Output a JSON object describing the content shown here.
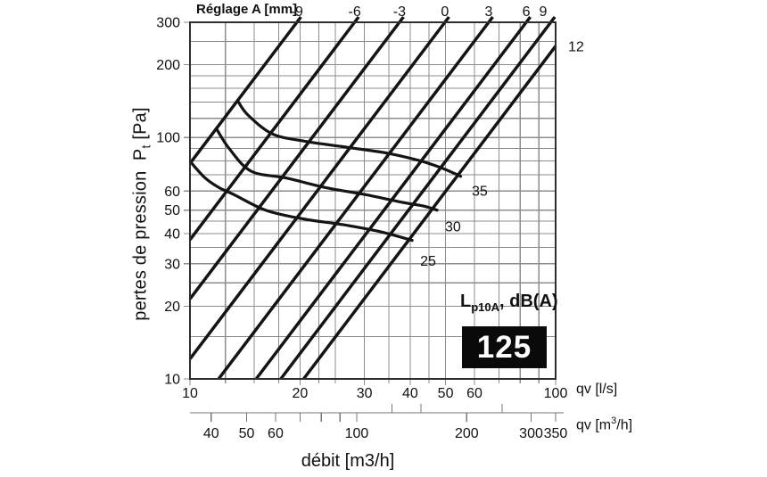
{
  "labels": {
    "reglage_header": "Réglage A [mm]",
    "y_title": {
      "text": "pertes de pression",
      "sym": "P",
      "sub": "t",
      "unit": "[Pa]"
    },
    "x_title": "débit [m3/h]",
    "x_unit": "qv [l/s]",
    "x2_unit": {
      "pre": "qv [m",
      "sup": "3",
      "post": "/h]"
    },
    "noise_label": {
      "sym": "L",
      "sub": "p10A",
      "rest": ", dB(A)"
    },
    "badge": "125"
  },
  "colors": {
    "curve": "#141414",
    "grid": "#8c8c8c",
    "border": "#2e2e2e",
    "text": "#111111",
    "badge_bg": "#0a0a0a",
    "badge_text": "#ffffff"
  },
  "chart_data": {
    "type": "line",
    "log_x": true,
    "log_y": true,
    "x_axis": {
      "unit": "qv [l/s]",
      "range": [
        10,
        100
      ],
      "major_ticks": [
        10,
        20,
        30,
        40,
        50,
        60,
        100
      ],
      "gridlines": [
        10,
        12.5,
        15,
        17.5,
        20,
        22.5,
        25,
        30,
        35,
        40,
        45,
        50,
        60,
        70,
        80,
        90,
        100
      ]
    },
    "y_axis": {
      "unit": "Pt [Pa]",
      "range": [
        10,
        300
      ],
      "major_ticks": [
        10,
        20,
        30,
        40,
        50,
        60,
        100,
        200,
        300
      ],
      "gridlines": [
        10,
        15,
        20,
        25,
        30,
        35,
        40,
        45,
        50,
        60,
        70,
        80,
        90,
        100,
        120,
        140,
        160,
        180,
        200,
        250,
        300
      ]
    },
    "x2_axis": {
      "unit": "qv [m3/h]",
      "conversion_factor_from_ls": 3.6,
      "labeled_ticks": [
        40,
        50,
        60,
        100,
        200,
        300,
        350
      ],
      "down_ticks": [
        40,
        50,
        60,
        70,
        80,
        90,
        100,
        200,
        300,
        350
      ],
      "up_ticks": [
        125,
        150,
        250
      ]
    },
    "reglage_series": {
      "header": "Réglage A [mm]",
      "relation": "Pt = k * qv^2",
      "lines": [
        {
          "label": "-9",
          "qv_at_300pa": 19.6
        },
        {
          "label": "-6",
          "qv_at_300pa": 28.2
        },
        {
          "label": "-3",
          "qv_at_300pa": 37.4
        },
        {
          "label": "0",
          "qv_at_300pa": 49.8
        },
        {
          "label": "3",
          "qv_at_300pa": 65.6
        },
        {
          "label": "6",
          "qv_at_300pa": 83.1
        },
        {
          "label": "9",
          "qv_at_300pa": 97.0
        },
        {
          "label": "12",
          "qv_at_300pa": 112.0
        }
      ]
    },
    "noise_curves": {
      "unit": "dB(A)",
      "curves": [
        {
          "label": "25",
          "points_qv_pt": [
            [
              10.05,
              79
            ],
            [
              11.0,
              68
            ],
            [
              12.0,
              62
            ],
            [
              13.2,
              58
            ],
            [
              16.1,
              50
            ],
            [
              20.4,
              46
            ],
            [
              26.3,
              43.5
            ],
            [
              32.9,
              40.8
            ],
            [
              40.5,
              37.5
            ]
          ],
          "label_at": [
            44.8,
            31
          ]
        },
        {
          "label": "30",
          "points_qv_pt": [
            [
              11.8,
              109
            ],
            [
              12.8,
              90
            ],
            [
              14.7,
              72.5
            ],
            [
              18.3,
              68
            ],
            [
              23.5,
              62
            ],
            [
              30.2,
              58
            ],
            [
              37.8,
              54
            ],
            [
              43.5,
              52
            ],
            [
              47.4,
              50
            ]
          ],
          "label_at": [
            52.4,
            43
          ]
        },
        {
          "label": "35",
          "points_qv_pt": [
            [
              13.5,
              142
            ],
            [
              14.4,
              124
            ],
            [
              16.8,
              103.5
            ],
            [
              20.6,
              96.5
            ],
            [
              27.0,
              91
            ],
            [
              34.8,
              86
            ],
            [
              42.7,
              80
            ],
            [
              48.5,
              75
            ],
            [
              53.4,
              70.5
            ],
            [
              55.0,
              69
            ]
          ],
          "label_at": [
            62,
            60.5
          ]
        }
      ]
    },
    "size_badge": "125"
  }
}
